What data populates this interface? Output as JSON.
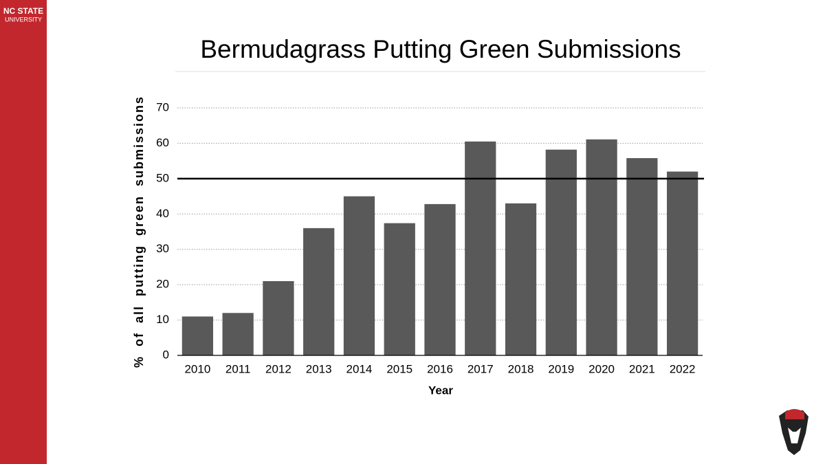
{
  "brand": {
    "name": "NC STATE",
    "sub": "UNIVERSITY"
  },
  "chart_data": {
    "type": "bar",
    "title": "Bermudagrass Putting Green Submissions",
    "x_label": "Year",
    "y_label": "% of all putting green submissions",
    "categories": [
      "2010",
      "2011",
      "2012",
      "2013",
      "2014",
      "2015",
      "2016",
      "2017",
      "2018",
      "2019",
      "2020",
      "2021",
      "2022"
    ],
    "values": [
      11,
      12,
      21,
      36,
      45,
      37.4,
      42.8,
      60.5,
      43,
      58.2,
      61.1,
      55.8,
      52
    ],
    "color": "#595959",
    "ylim": [
      0,
      70
    ],
    "yticks": [
      0,
      10,
      20,
      30,
      40,
      50,
      60,
      70
    ],
    "grid": true,
    "reference_line": 50
  }
}
